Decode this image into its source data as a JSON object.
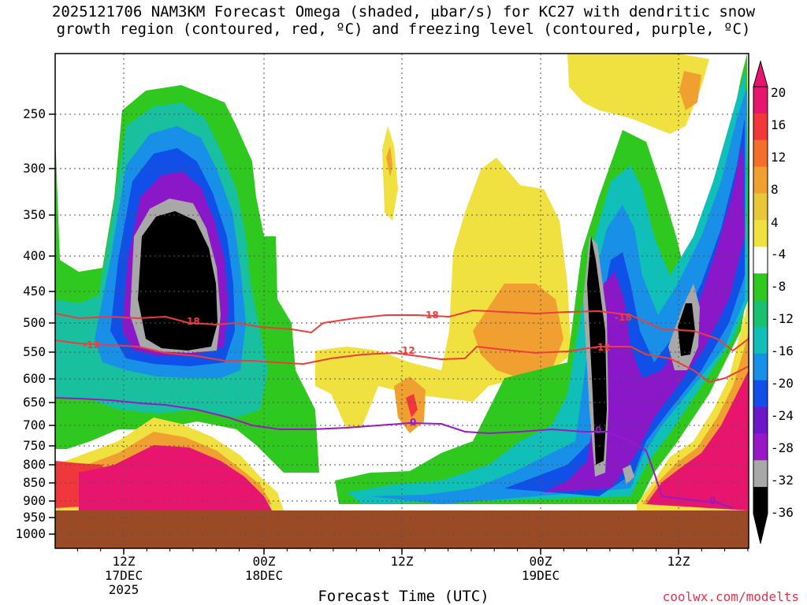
{
  "title": {
    "line1": "2025121706 NAM3KM Forecast Omega (shaded, μbar/s) for KC27 with dendritic snow",
    "line2": "growth region (contoured, red, ºC) and freezing level (contoured, purple, ºC)"
  },
  "chart_data": {
    "type": "heatmap",
    "title": "2025121706 NAM3KM Forecast Omega (shaded, μbar/s) for KC27 with dendritic snow growth region (contoured, red, ºC) and freezing level (contoured, purple, ºC)",
    "xlabel": "Forecast Time (UTC)",
    "ylabel": "",
    "y_axis": {
      "labels": [
        "250",
        "300",
        "350",
        "400",
        "450",
        "500",
        "550",
        "600",
        "650",
        "700",
        "750",
        "800",
        "850",
        "900",
        "950",
        "1000"
      ],
      "scale": "pressure (mb), reversed"
    },
    "x_axis": {
      "ticks": [
        {
          "label": "12Z",
          "sub1": "17DEC",
          "sub2": "2025"
        },
        {
          "label": "00Z",
          "sub1": "18DEC",
          "sub2": ""
        },
        {
          "label": "12Z",
          "sub1": "",
          "sub2": ""
        },
        {
          "label": "00Z",
          "sub1": "19DEC",
          "sub2": ""
        },
        {
          "label": "12Z",
          "sub1": "",
          "sub2": ""
        }
      ]
    },
    "colorbar": {
      "labels": [
        "20",
        "16",
        "12",
        "8",
        "4",
        "-4",
        "-8",
        "-12",
        "-16",
        "-20",
        "-24",
        "-28",
        "-32",
        "-36"
      ],
      "colors": [
        "#e8156f",
        "#f0383c",
        "#f4702a",
        "#f0a030",
        "#e8c838",
        "#f0e040",
        "#ffffff",
        "#2ec81e",
        "#18c070",
        "#10c0b8",
        "#1890e8",
        "#1050e8",
        "#6a18c8",
        "#9818c8",
        "#a8a8a8",
        "#000000"
      ]
    },
    "contours": [
      {
        "name": "dendritic top",
        "label": "-18",
        "color": "#ee3c3c"
      },
      {
        "name": "dendritic bottom",
        "label": "-12",
        "color": "#ee3c3c"
      },
      {
        "name": "freezing level",
        "label": "0",
        "color": "#9a18c8"
      }
    ],
    "terrain_color": "#9a4a24"
  },
  "x_axis_title": "Forecast Time (UTC)",
  "credit": "coolwx.com/modelts"
}
